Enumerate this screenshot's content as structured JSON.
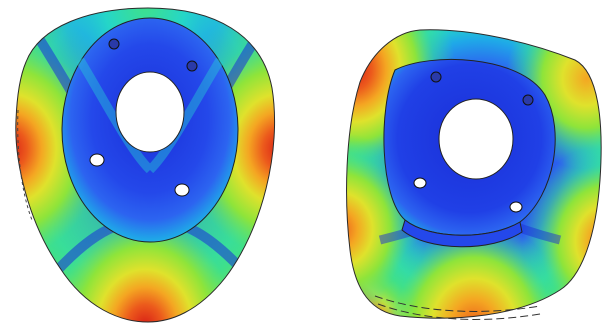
{
  "figure": {
    "panels": [
      {
        "id": "left",
        "subject": "contour-plot"
      },
      {
        "id": "right",
        "subject": "contour-plot"
      }
    ],
    "colormap": [
      "#1a2fd8",
      "#2c64f0",
      "#1fa8e8",
      "#25d6c8",
      "#3fe08a",
      "#8ee43a",
      "#dfe22c",
      "#f4a622",
      "#ec5a1c",
      "#d81e16"
    ]
  }
}
